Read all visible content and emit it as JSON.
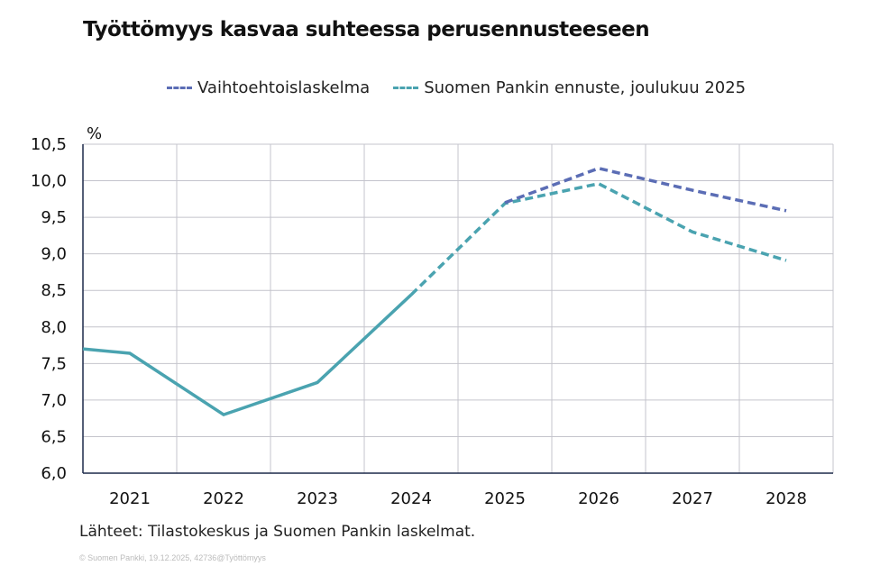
{
  "title": "Työttömyys kasvaa suhteessa perusennusteeseen",
  "source": "Lähteet: Tilastokeskus ja Suomen Pankin laskelmat.",
  "copyright": "© Suomen Pankki, 19.12.2025, 42736@Työttömyys",
  "chart_data": {
    "type": "line",
    "title": "Työttömyys kasvaa suhteessa perusennusteeseen",
    "ylabel": "%",
    "ylim": [
      6.0,
      10.5
    ],
    "yticks": [
      "6,0",
      "6,5",
      "7,0",
      "7,5",
      "8,0",
      "8,5",
      "9,0",
      "9,5",
      "10,0",
      "10,5"
    ],
    "xticks": [
      "2021",
      "2022",
      "2023",
      "2024",
      "2025",
      "2026",
      "2027",
      "2028"
    ],
    "grid": true,
    "legend_position": "top",
    "series": [
      {
        "name": "Vaihtoehtoislaskelma",
        "color": "#5b6db5",
        "style": "dashed",
        "x": [
          2025,
          2026,
          2027,
          2028
        ],
        "y": [
          9.7,
          10.17,
          9.87,
          9.59
        ]
      },
      {
        "name": "Suomen Pankin ennuste, joulukuu 2025",
        "color": "#4aa3b0",
        "style": "solid-then-dashed",
        "x": [
          2020.5,
          2021,
          2022,
          2023,
          2024,
          2025,
          2026,
          2027,
          2028
        ],
        "y": [
          7.7,
          7.64,
          6.8,
          7.24,
          8.44,
          9.69,
          9.96,
          9.3,
          8.91
        ],
        "forecast_from": 2024
      }
    ]
  }
}
